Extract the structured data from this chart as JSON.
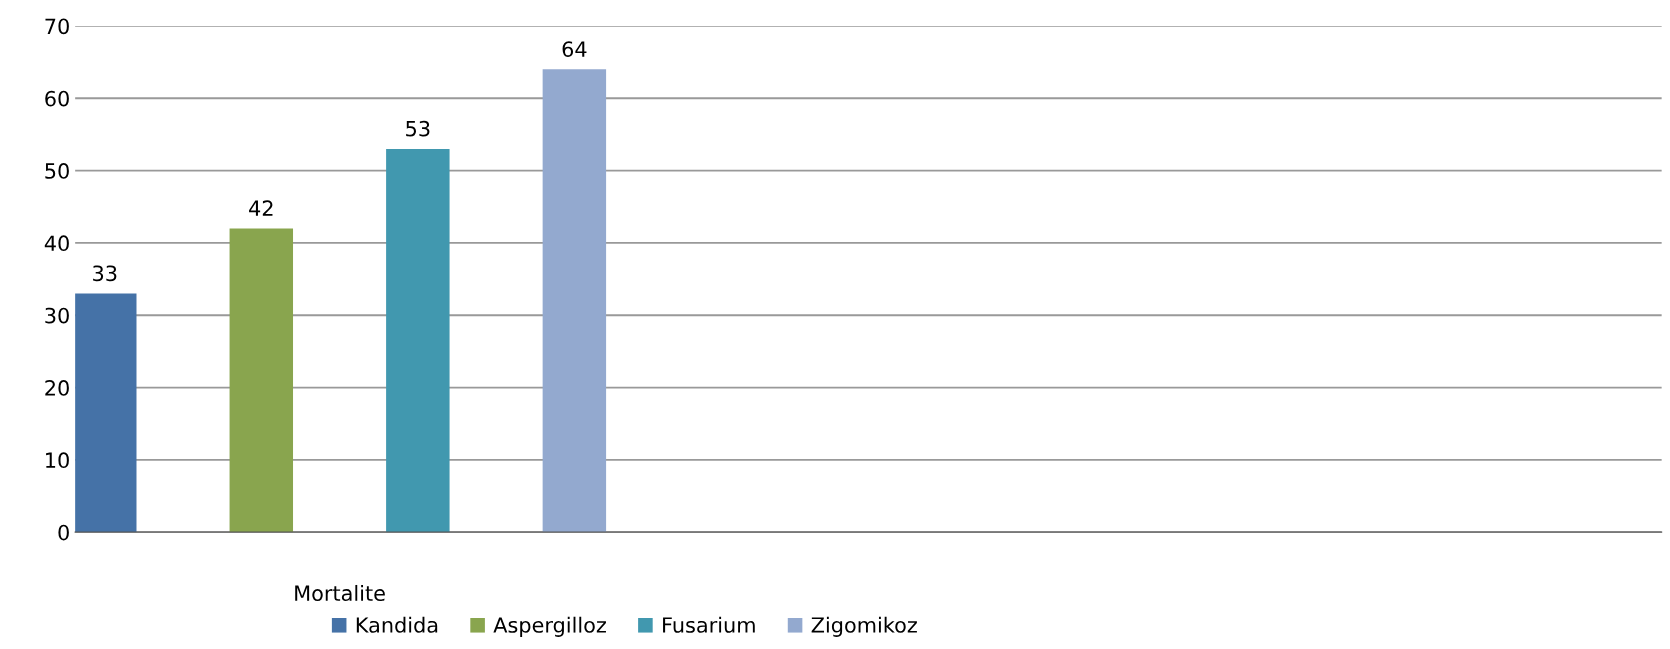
{
  "chart_data": {
    "type": "bar",
    "categories": [
      "Mortalite",
      null,
      null
    ],
    "series": [
      {
        "name": "Kandida",
        "color": "#4572a7",
        "values": [
          33,
          null,
          null
        ]
      },
      {
        "name": "Aspergilloz",
        "color": "#89a54e",
        "values": [
          42,
          null,
          null
        ]
      },
      {
        "name": "Fusarium",
        "color": "#4198af",
        "values": [
          53,
          null,
          null
        ]
      },
      {
        "name": "Zigomikoz",
        "color": "#93a9cf",
        "values": [
          64,
          null,
          null
        ]
      }
    ],
    "ylim": [
      0,
      70
    ],
    "yticks": [
      0,
      10,
      20,
      30,
      40,
      50,
      60,
      70
    ],
    "grid": "y",
    "legend": "bottom",
    "data_labels": true
  }
}
